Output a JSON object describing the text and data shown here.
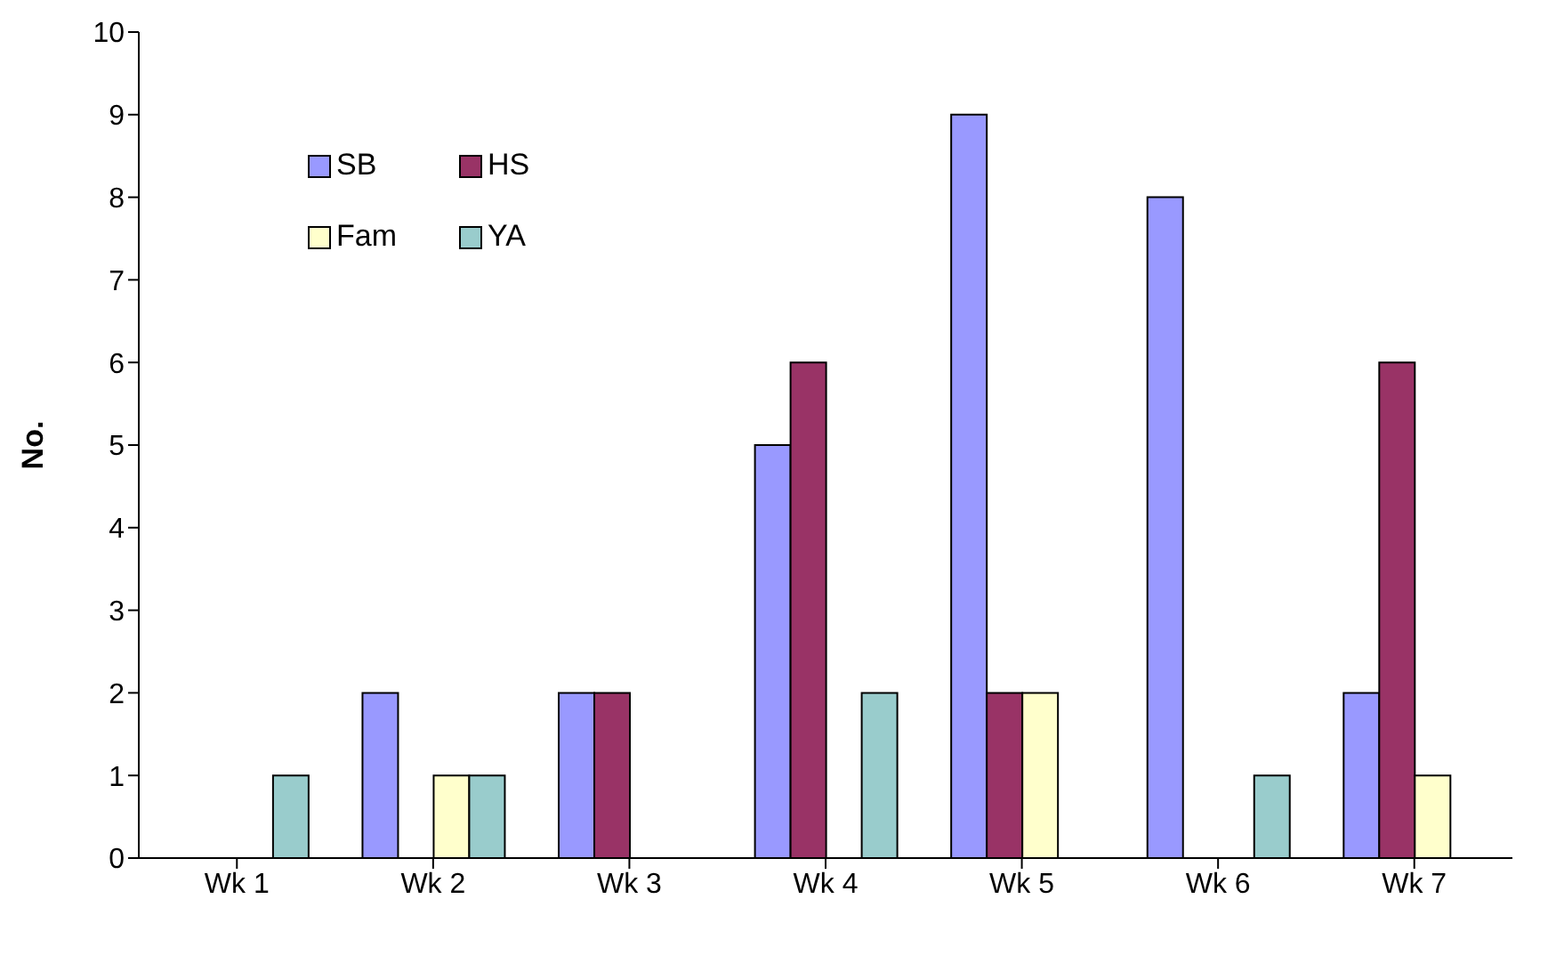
{
  "chart_data": {
    "type": "bar",
    "ylabel": "No.",
    "categories": [
      "Wk 1",
      "Wk 2",
      "Wk 3",
      "Wk 4",
      "Wk 5",
      "Wk 6",
      "Wk 7"
    ],
    "series": [
      {
        "name": "SB",
        "color": "#9999ff",
        "values": [
          0,
          2,
          2,
          5,
          9,
          8,
          2
        ]
      },
      {
        "name": "HS",
        "color": "#993366",
        "values": [
          0,
          0,
          2,
          6,
          2,
          0,
          6
        ]
      },
      {
        "name": "Fam",
        "color": "#ffffcc",
        "values": [
          0,
          1,
          0,
          0,
          2,
          0,
          1
        ]
      },
      {
        "name": "YA",
        "color": "#99cccc",
        "values": [
          1,
          1,
          0,
          2,
          0,
          1,
          0
        ]
      }
    ],
    "ylim": [
      0,
      10
    ],
    "yticks": [
      0,
      1,
      2,
      3,
      4,
      5,
      6,
      7,
      8,
      9,
      10
    ],
    "grid": false,
    "legend": "top left"
  }
}
